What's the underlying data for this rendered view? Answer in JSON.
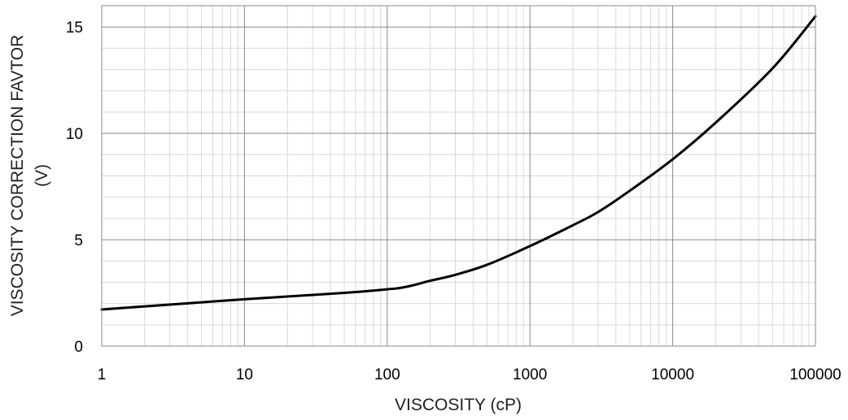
{
  "chart_data": {
    "type": "line",
    "xlabel": "VISCOSITY (cP)",
    "ylabel_lines": [
      "VISCOSITY CORRECTION FAVTOR",
      "(V)"
    ],
    "x_scale": "log",
    "xlim": [
      1,
      100000
    ],
    "ylim": [
      0,
      16
    ],
    "x_tick_labels": [
      "1",
      "10",
      "100",
      "1000",
      "10000",
      "100000"
    ],
    "y_tick_labels": [
      "0",
      "5",
      "10",
      "15"
    ],
    "grid": {
      "major": true,
      "minor": true
    },
    "series": [
      {
        "color": "#000000",
        "points": [
          {
            "x": 1,
            "y": 1.72
          },
          {
            "x": 10,
            "y": 2.2
          },
          {
            "x": 50,
            "y": 2.5
          },
          {
            "x": 100,
            "y": 2.67
          },
          {
            "x": 120,
            "y": 2.72
          },
          {
            "x": 150,
            "y": 2.85
          },
          {
            "x": 200,
            "y": 3.07
          },
          {
            "x": 300,
            "y": 3.35
          },
          {
            "x": 500,
            "y": 3.82
          },
          {
            "x": 1000,
            "y": 4.7
          },
          {
            "x": 2000,
            "y": 5.68
          },
          {
            "x": 3000,
            "y": 6.3
          },
          {
            "x": 5000,
            "y": 7.3
          },
          {
            "x": 10000,
            "y": 8.78
          },
          {
            "x": 20000,
            "y": 10.5
          },
          {
            "x": 50000,
            "y": 13.05
          },
          {
            "x": 100000,
            "y": 15.5
          }
        ]
      }
    ]
  }
}
